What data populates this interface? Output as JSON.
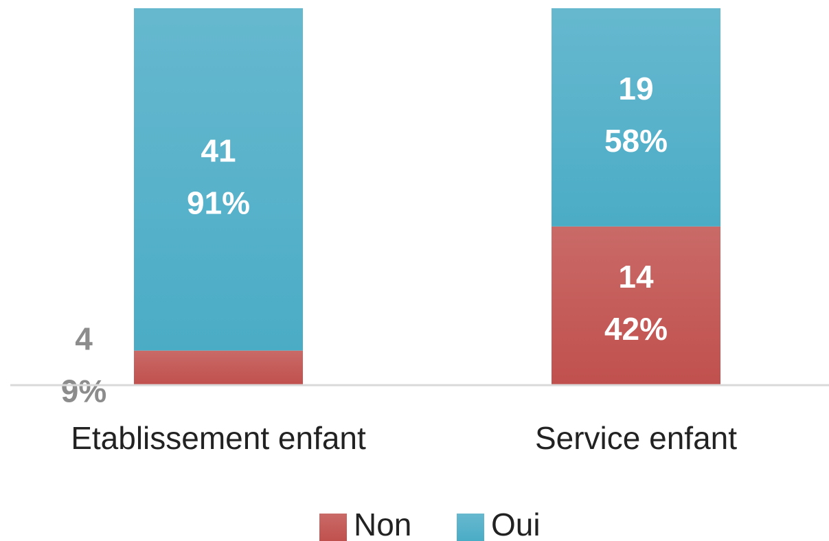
{
  "chart_data": {
    "type": "stacked_bar_100",
    "categories": [
      "Etablissement enfant",
      "Service enfant"
    ],
    "series": [
      {
        "name": "Non",
        "color": "#c0504d",
        "counts": [
          4,
          14
        ],
        "values": [
          9,
          42
        ],
        "value_labels": [
          "9%",
          "42%"
        ]
      },
      {
        "name": "Oui",
        "color": "#4bacc6",
        "counts": [
          41,
          19
        ],
        "values": [
          91,
          58
        ],
        "value_labels": [
          "91%",
          "58%"
        ]
      }
    ],
    "ylim": [
      0,
      100
    ]
  }
}
